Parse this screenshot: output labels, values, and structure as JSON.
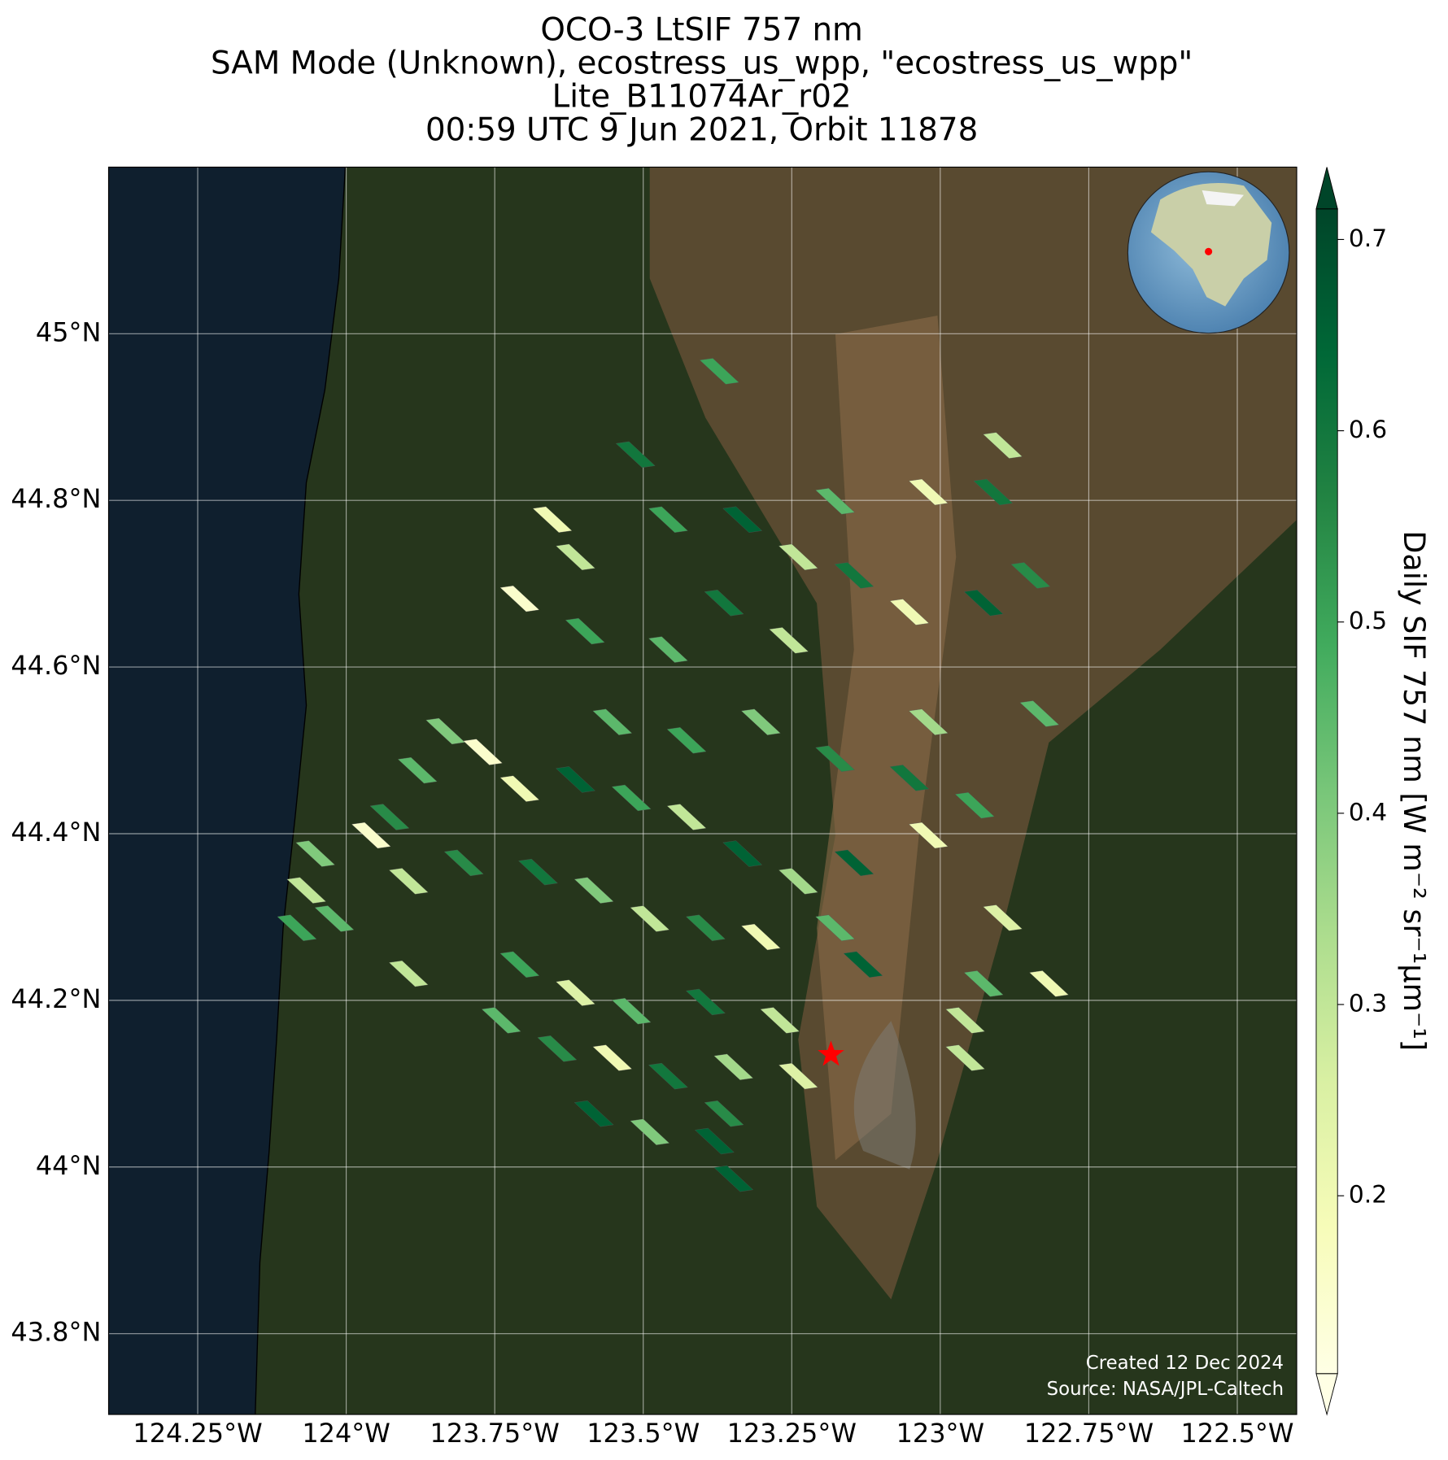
{
  "chart_data": {
    "type": "map",
    "title": [
      "OCO-3 LtSIF 757 nm",
      "SAM Mode (Unknown), ecostress_us_wpp, \"ecostress_us_wpp\"",
      "Lite_B11074Ar_r02",
      "00:59 UTC 9 Jun 2021, Orbit 11878"
    ],
    "xlim": [
      -124.4,
      -122.4
    ],
    "ylim": [
      43.703,
      45.2
    ],
    "xticks": [
      {
        "value": -124.25,
        "label": "124.25°W"
      },
      {
        "value": -124,
        "label": "124°W"
      },
      {
        "value": -123.75,
        "label": "123.75°W"
      },
      {
        "value": -123.5,
        "label": "123.5°W"
      },
      {
        "value": -123.25,
        "label": "123.25°W"
      },
      {
        "value": -123,
        "label": "123°W"
      },
      {
        "value": -122.75,
        "label": "122.75°W"
      },
      {
        "value": -122.5,
        "label": "122.5°W"
      }
    ],
    "yticks": [
      {
        "value": 45,
        "label": "45°N"
      },
      {
        "value": 44.8,
        "label": "44.8°N"
      },
      {
        "value": 44.6,
        "label": "44.6°N"
      },
      {
        "value": 44.4,
        "label": "44.4°N"
      },
      {
        "value": 44.2,
        "label": "44.2°N"
      },
      {
        "value": 44,
        "label": "44°N"
      },
      {
        "value": 43.8,
        "label": "43.8°N"
      }
    ],
    "grid": true,
    "colorbar": {
      "label": "Daily SIF 757 nm [W m⁻² sr⁻¹μm⁻¹]",
      "clim": [
        0.107,
        0.716
      ],
      "ticks": [
        0.2,
        0.3,
        0.4,
        0.5,
        0.6,
        0.7
      ],
      "colormap": [
        "#ffffe5",
        "#f7fcb9",
        "#d9f0a3",
        "#addd8e",
        "#78c679",
        "#41ab5d",
        "#238443",
        "#006837",
        "#004529"
      ],
      "extend": "both"
    },
    "footprints": {
      "lon": [
        -123.372,
        -123.513,
        -123.653,
        -123.614,
        -123.458,
        -123.333,
        -123.239,
        -123.177,
        -123.145,
        -123.02,
        -122.911,
        -122.895,
        -122.848,
        -122.927,
        -123.052,
        -123.708,
        -123.598,
        -123.458,
        -123.364,
        -123.255,
        -122.833,
        -123.02,
        -123.552,
        -123.427,
        -123.302,
        -123.177,
        -123.052,
        -122.942,
        -123.02,
        -123.145,
        -123.833,
        -123.88,
        -123.77,
        -123.708,
        -123.614,
        -123.52,
        -123.427,
        -123.333,
        -123.239,
        -123.927,
        -123.958,
        -124.052,
        -124.067,
        -124.02,
        -124.083,
        -123.895,
        -123.802,
        -123.677,
        -123.583,
        -123.489,
        -123.395,
        -123.302,
        -123.177,
        -123.13,
        -123.895,
        -123.708,
        -123.614,
        -123.52,
        -123.395,
        -123.27,
        -123.739,
        -123.645,
        -123.552,
        -123.458,
        -123.348,
        -123.239,
        -123.583,
        -123.489,
        -123.364,
        -123.38,
        -123.348,
        -122.927,
        -122.895,
        -122.958,
        -122.958,
        -122.817
      ],
      "lat": [
        44.955,
        44.855,
        44.777,
        44.732,
        44.777,
        44.777,
        44.732,
        44.799,
        44.71,
        44.81,
        44.81,
        44.866,
        44.71,
        44.677,
        44.666,
        44.682,
        44.643,
        44.621,
        44.677,
        44.632,
        44.544,
        44.534,
        44.534,
        44.512,
        44.534,
        44.49,
        44.467,
        44.434,
        44.398,
        44.365,
        44.523,
        44.476,
        44.498,
        44.454,
        44.465,
        44.443,
        44.42,
        44.376,
        44.343,
        44.42,
        44.398,
        44.376,
        44.332,
        44.298,
        44.287,
        44.343,
        44.365,
        44.354,
        44.332,
        44.298,
        44.287,
        44.276,
        44.287,
        44.243,
        44.232,
        44.243,
        44.209,
        44.187,
        44.198,
        44.176,
        44.176,
        44.142,
        44.131,
        44.109,
        44.12,
        44.109,
        44.064,
        44.042,
        44.064,
        44.031,
        43.986,
        44.22,
        44.299,
        44.176,
        44.131,
        44.22
      ],
      "values": [
        0.5,
        0.6,
        0.2,
        0.3,
        0.5,
        0.65,
        0.3,
        0.45,
        0.6,
        0.2,
        0.6,
        0.3,
        0.55,
        0.65,
        0.2,
        0.15,
        0.5,
        0.45,
        0.6,
        0.3,
        0.45,
        0.35,
        0.45,
        0.5,
        0.4,
        0.55,
        0.6,
        0.5,
        0.2,
        0.65,
        0.4,
        0.45,
        0.15,
        0.2,
        0.65,
        0.5,
        0.3,
        0.65,
        0.35,
        0.55,
        0.15,
        0.4,
        0.3,
        0.45,
        0.5,
        0.3,
        0.55,
        0.6,
        0.4,
        0.3,
        0.55,
        0.2,
        0.45,
        0.65,
        0.3,
        0.5,
        0.25,
        0.45,
        0.6,
        0.3,
        0.45,
        0.55,
        0.2,
        0.6,
        0.35,
        0.25,
        0.65,
        0.4,
        0.55,
        0.65,
        0.65,
        0.45,
        0.25,
        0.3,
        0.3,
        0.2
      ]
    },
    "target": {
      "lon": -123.184,
      "lat": 44.135,
      "color": "#ff0000"
    },
    "credits": [
      "Created 12 Dec 2024",
      "Source: NASA/JPL-Caltech"
    ]
  }
}
